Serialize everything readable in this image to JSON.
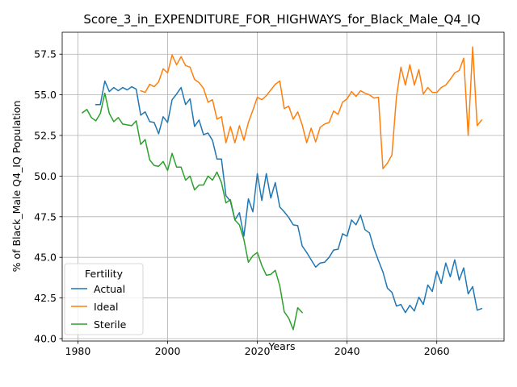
{
  "chart_data": {
    "type": "line",
    "title": "Score_3_in_EXPENDITURE_FOR_HIGHWAYS_for_Black_Male_Q4_IQ",
    "xlabel": "Years",
    "ylabel": "% of Black_Male Q4_IQ Population",
    "xlim": [
      1976.5,
      2075
    ],
    "ylim": [
      39.85,
      58.85
    ],
    "xticks": [
      1980,
      2000,
      2020,
      2040,
      2060
    ],
    "yticks": [
      40.0,
      42.5,
      45.0,
      47.5,
      50.0,
      52.5,
      55.0,
      57.5
    ],
    "ytick_labels": [
      "40.0",
      "42.5",
      "45.0",
      "47.5",
      "50.0",
      "52.5",
      "55.0",
      "57.5"
    ],
    "grid": true,
    "legend": {
      "title": "Fertility",
      "placement": "lower-left"
    },
    "series": [
      {
        "name": "Actual",
        "color": "#1f77b4",
        "x": [
          1984,
          1985,
          1986,
          1987,
          1988,
          1989,
          1990,
          1991,
          1992,
          1993,
          1994,
          1995,
          1996,
          1997,
          1998,
          1999,
          2000,
          2001,
          2002,
          2003,
          2004,
          2005,
          2006,
          2007,
          2008,
          2009,
          2010,
          2011,
          2012,
          2013,
          2014,
          2015,
          2016,
          2017,
          2018,
          2019,
          2020,
          2021,
          2022,
          2023,
          2024,
          2025,
          2026,
          2027,
          2028,
          2029,
          2030,
          2031,
          2032,
          2033,
          2034,
          2035,
          2036,
          2037,
          2038,
          2039,
          2040,
          2041,
          2042,
          2043,
          2044,
          2045,
          2046,
          2047,
          2048,
          2049,
          2050,
          2051,
          2052,
          2053,
          2054,
          2055,
          2056,
          2057,
          2058,
          2059,
          2060,
          2061,
          2062,
          2063,
          2064,
          2065,
          2066,
          2067,
          2068,
          2069,
          2070
        ],
        "values": [
          54.4,
          54.4,
          55.85,
          55.2,
          55.45,
          55.25,
          55.45,
          55.3,
          55.5,
          55.35,
          53.75,
          53.95,
          53.35,
          53.3,
          52.6,
          53.65,
          53.3,
          54.7,
          55.05,
          55.45,
          54.4,
          54.75,
          53.05,
          53.45,
          52.55,
          52.65,
          52.2,
          51.05,
          51.05,
          48.8,
          48.45,
          47.3,
          47.75,
          46.3,
          48.6,
          47.8,
          50.15,
          48.5,
          50.15,
          48.65,
          49.6,
          48.1,
          47.8,
          47.45,
          47.0,
          46.95,
          45.7,
          45.3,
          44.85,
          44.4,
          44.65,
          44.7,
          45.0,
          45.45,
          45.5,
          46.45,
          46.3,
          47.3,
          47.0,
          47.6,
          46.7,
          46.5,
          45.55,
          44.8,
          44.1,
          43.1,
          42.85,
          42.0,
          42.1,
          41.6,
          42.05,
          41.7,
          42.55,
          42.1,
          43.3,
          42.9,
          44.15,
          43.4,
          44.65,
          43.8,
          44.85,
          43.6,
          44.35,
          42.75,
          43.2,
          41.75,
          41.85
        ]
      },
      {
        "name": "Ideal",
        "color": "#ff7f0e",
        "x": [
          1994,
          1995,
          1996,
          1997,
          1998,
          1999,
          2000,
          2001,
          2002,
          2003,
          2004,
          2005,
          2006,
          2007,
          2008,
          2009,
          2010,
          2011,
          2012,
          2013,
          2014,
          2015,
          2016,
          2017,
          2018,
          2019,
          2020,
          2021,
          2022,
          2023,
          2024,
          2025,
          2026,
          2027,
          2028,
          2029,
          2030,
          2031,
          2032,
          2033,
          2034,
          2035,
          2036,
          2037,
          2038,
          2039,
          2040,
          2041,
          2042,
          2043,
          2044,
          2045,
          2046,
          2047,
          2048,
          2049,
          2050,
          2051,
          2052,
          2053,
          2054,
          2055,
          2056,
          2057,
          2058,
          2059,
          2060,
          2061,
          2062,
          2063,
          2064,
          2065,
          2066,
          2067,
          2068,
          2069,
          2070
        ],
        "values": [
          55.25,
          55.15,
          55.65,
          55.5,
          55.8,
          56.6,
          56.35,
          57.45,
          56.85,
          57.35,
          56.8,
          56.7,
          55.95,
          55.75,
          55.4,
          54.55,
          54.7,
          53.5,
          53.65,
          52.05,
          53.05,
          52.05,
          53.1,
          52.2,
          53.3,
          54.05,
          54.85,
          54.7,
          54.95,
          55.3,
          55.65,
          55.85,
          54.15,
          54.3,
          53.5,
          53.95,
          53.15,
          52.05,
          52.95,
          52.1,
          53.0,
          53.2,
          53.3,
          54.0,
          53.8,
          54.55,
          54.75,
          55.2,
          54.9,
          55.25,
          55.1,
          55.0,
          54.8,
          54.85,
          50.45,
          50.8,
          51.3,
          54.85,
          56.7,
          55.6,
          56.85,
          55.6,
          56.55,
          55.05,
          55.45,
          55.15,
          55.15,
          55.45,
          55.6,
          55.95,
          56.35,
          56.5,
          57.25,
          52.5,
          57.95,
          53.1,
          53.45
        ]
      },
      {
        "name": "Sterile",
        "color": "#2ca02c",
        "x": [
          1981,
          1982,
          1983,
          1984,
          1985,
          1986,
          1987,
          1988,
          1989,
          1990,
          1991,
          1992,
          1993,
          1994,
          1995,
          1996,
          1997,
          1998,
          1999,
          2000,
          2001,
          2002,
          2003,
          2004,
          2005,
          2006,
          2007,
          2008,
          2009,
          2010,
          2011,
          2012,
          2013,
          2014,
          2015,
          2016,
          2017,
          2018,
          2019,
          2020,
          2021,
          2022,
          2023,
          2024,
          2025,
          2026,
          2027,
          2028,
          2029,
          2030
        ],
        "values": [
          53.9,
          54.1,
          53.6,
          53.4,
          53.85,
          55.1,
          53.85,
          53.35,
          53.6,
          53.2,
          53.15,
          53.1,
          53.4,
          51.95,
          52.25,
          51.0,
          50.65,
          50.6,
          50.9,
          50.35,
          51.4,
          50.55,
          50.55,
          49.75,
          50.0,
          49.15,
          49.45,
          49.45,
          50.0,
          49.75,
          50.25,
          49.6,
          48.35,
          48.55,
          47.3,
          47.0,
          46.1,
          44.7,
          45.1,
          45.3,
          44.5,
          43.9,
          43.95,
          44.2,
          43.25,
          41.65,
          41.25,
          40.55,
          41.9,
          41.6
        ]
      }
    ]
  }
}
